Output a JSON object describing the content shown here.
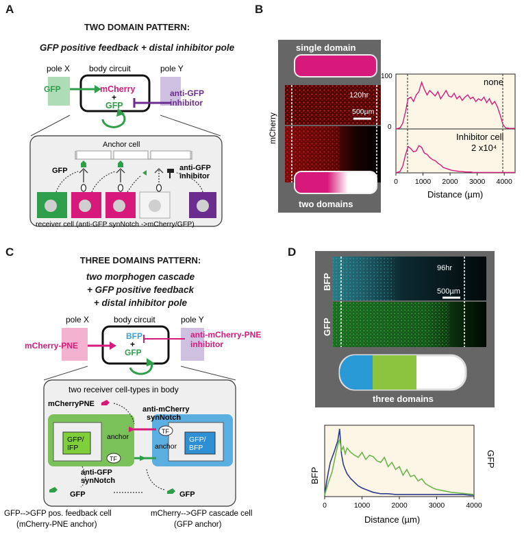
{
  "panel_a": {
    "letter": "A",
    "title": "TWO DOMAIN PATTERN:",
    "subtitle": "GFP positive feedback + distal inhibitor pole",
    "pole_x": "pole X",
    "body_circuit": "body circuit",
    "pole_y": "pole Y",
    "gfp": "GFP",
    "mcherry": "mCherry",
    "plus": "+",
    "gfp_inner": "GFP",
    "anti_gfp": "anti-GFP",
    "inhibitor": "inhibitor",
    "anchor_cell": "Anchor cell",
    "gfp_small": "GFP",
    "anti_gfp_small": "anti-GFP",
    "inhibitor_small": "inhibitor",
    "receiver": "receiver cell (anti-GFP synNotch ->mCherry/GFP)",
    "colors": {
      "green": "#2e9e4a",
      "magenta": "#d6197a",
      "purple": "#6b2c8f"
    }
  },
  "panel_b": {
    "letter": "B",
    "single_domain": "single domain",
    "two_domains": "two domains",
    "ylabel": "mCherry",
    "time": "120hr",
    "scale": "500µm",
    "plot_label_top": "none",
    "plot_label_bottom_1": "Inhibitor cell",
    "plot_label_bottom_2": "2 x10⁴",
    "ytick_100": "100",
    "ytick_0": "0",
    "xlabel": "Distance (µm)"
  },
  "panel_c": {
    "letter": "C",
    "title": "THREE DOMAINS PATTERN:",
    "subtitle_1": "two morphogen cascade",
    "subtitle_2": "+ GFP positive feedback",
    "subtitle_3": "+ distal inhibitor pole",
    "pole_x": "pole X",
    "body_circuit": "body circuit",
    "pole_y": "pole Y",
    "mcherry_pne": "mCherry-PNE",
    "bfp": "BFP",
    "plus": "+",
    "gfp": "GFP",
    "anti_mcherry_pne": "anti-mCherry-PNE",
    "inhibitor": "inhibitor",
    "two_receivers": "two receiver cell-types in body",
    "mcherrypne_label": "mCherryPNE",
    "anti_mcherry": "anti-mCherry",
    "synnotch": "synNotch",
    "anchor_left": "anchor",
    "anchor_right": "anchor",
    "tf1": "TF",
    "tf2": "TF",
    "gfp_ifp_1": "GFP/",
    "gfp_ifp_2": "IFP",
    "gfp_bfp_1": "GFP/",
    "gfp_bfp_2": "BFP",
    "anti_gfp": "anti-GFP",
    "synnotch2": "synNotch",
    "gfp_bottom_left": "GFP",
    "gfp_bottom_right": "GFP",
    "caption_left_1": "GFP-->GFP pos. feedback cell",
    "caption_left_2": "(mCherry-PNE anchor)",
    "caption_right_1": "mCherry-->GFP cascade cell",
    "caption_right_2": "(GFP anchor)"
  },
  "panel_d": {
    "letter": "D",
    "bfp": "BFP",
    "gfp": "GFP",
    "time": "96hr",
    "scale": "500µm",
    "three_domains": "three domains",
    "plot_left": "BFP",
    "plot_right": "GFP",
    "xticks": [
      "0",
      "1000",
      "2000",
      "3000",
      "4000"
    ],
    "xlabel": "Distance (µm)"
  },
  "chart_data": [
    {
      "type": "line",
      "panel": "B-top",
      "title": "none",
      "xlabel": "Distance (µm)",
      "xlim": [
        0,
        4400
      ],
      "ylim": [
        0,
        100
      ],
      "xticks": [
        0,
        1000,
        2000,
        3000,
        4000
      ],
      "yticks": [
        0,
        100
      ],
      "series": [
        {
          "x": [
            0,
            150,
            250,
            350,
            450,
            550,
            650,
            750,
            850,
            950,
            1050,
            1150,
            1250,
            1350,
            1450,
            1550,
            1650,
            1750,
            1850,
            1950,
            2050,
            2150,
            2250,
            2350,
            2450,
            2550,
            2650,
            2750,
            2850,
            2950,
            3050,
            3150,
            3250,
            3350,
            3450,
            3550,
            3650,
            3750,
            3850,
            3950,
            4050,
            4200,
            4400
          ],
          "y": [
            0,
            2,
            10,
            30,
            55,
            58,
            50,
            62,
            68,
            85,
            72,
            62,
            70,
            65,
            60,
            68,
            55,
            62,
            70,
            60,
            58,
            65,
            55,
            60,
            52,
            58,
            62,
            55,
            58,
            50,
            55,
            52,
            58,
            48,
            55,
            45,
            50,
            40,
            25,
            8,
            2,
            1,
            1
          ]
        }
      ]
    },
    {
      "type": "line",
      "panel": "B-bottom",
      "title": "Inhibitor cell 2 x10⁴",
      "xlabel": "Distance (µm)",
      "xlim": [
        0,
        4400
      ],
      "ylim": [
        0,
        100
      ],
      "xticks": [
        0,
        1000,
        2000,
        3000,
        4000
      ],
      "series": [
        {
          "x": [
            0,
            150,
            250,
            350,
            450,
            550,
            650,
            750,
            850,
            950,
            1050,
            1150,
            1250,
            1350,
            1450,
            1550,
            1650,
            1750,
            1850,
            1950,
            2050,
            2150,
            2250,
            2350,
            2450,
            2550,
            2650,
            2750,
            2850,
            2950,
            3050,
            3200,
            3400,
            3600,
            3800,
            4000,
            4200,
            4400
          ],
          "y": [
            0,
            3,
            15,
            40,
            60,
            55,
            48,
            50,
            62,
            58,
            45,
            42,
            35,
            30,
            28,
            22,
            18,
            12,
            10,
            8,
            6,
            5,
            4,
            3,
            3,
            2,
            2,
            2,
            1,
            1,
            1,
            1,
            1,
            1,
            1,
            1,
            1,
            1
          ]
        }
      ]
    },
    {
      "type": "line",
      "panel": "D",
      "xlabel": "Distance (µm)",
      "xlim": [
        0,
        4000
      ],
      "xticks": [
        0,
        1000,
        2000,
        3000,
        4000
      ],
      "series": [
        {
          "name": "BFP",
          "color": "#2b3a8c",
          "x": [
            0,
            50,
            100,
            150,
            200,
            250,
            300,
            350,
            400,
            450,
            500,
            550,
            600,
            700,
            800,
            900,
            1000,
            1100,
            1200,
            1300,
            1400,
            1500,
            1700,
            1900,
            2100,
            2300,
            2500,
            2700,
            2900,
            3100,
            3300,
            3500,
            3700,
            3900,
            4000
          ],
          "y": [
            2,
            20,
            35,
            48,
            55,
            62,
            70,
            78,
            95,
            60,
            45,
            38,
            32,
            25,
            20,
            15,
            12,
            10,
            8,
            6,
            5,
            4,
            4,
            3,
            3,
            3,
            3,
            3,
            3,
            3,
            3,
            3,
            3,
            2,
            2
          ]
        },
        {
          "name": "GFP",
          "color": "#6ab64a",
          "x": [
            0,
            100,
            200,
            300,
            350,
            400,
            450,
            500,
            550,
            600,
            700,
            800,
            900,
            1000,
            1100,
            1200,
            1300,
            1400,
            1500,
            1600,
            1700,
            1800,
            1900,
            2000,
            2100,
            2200,
            2300,
            2400,
            2500,
            2600,
            2700,
            2800,
            2900,
            3000,
            3200,
            3400,
            3600,
            3800,
            4000
          ],
          "y": [
            2,
            20,
            35,
            60,
            72,
            80,
            65,
            70,
            60,
            68,
            62,
            58,
            55,
            62,
            52,
            58,
            56,
            50,
            48,
            55,
            42,
            48,
            38,
            42,
            30,
            38,
            28,
            30,
            22,
            25,
            18,
            15,
            12,
            10,
            8,
            6,
            5,
            4,
            3
          ]
        }
      ]
    }
  ]
}
